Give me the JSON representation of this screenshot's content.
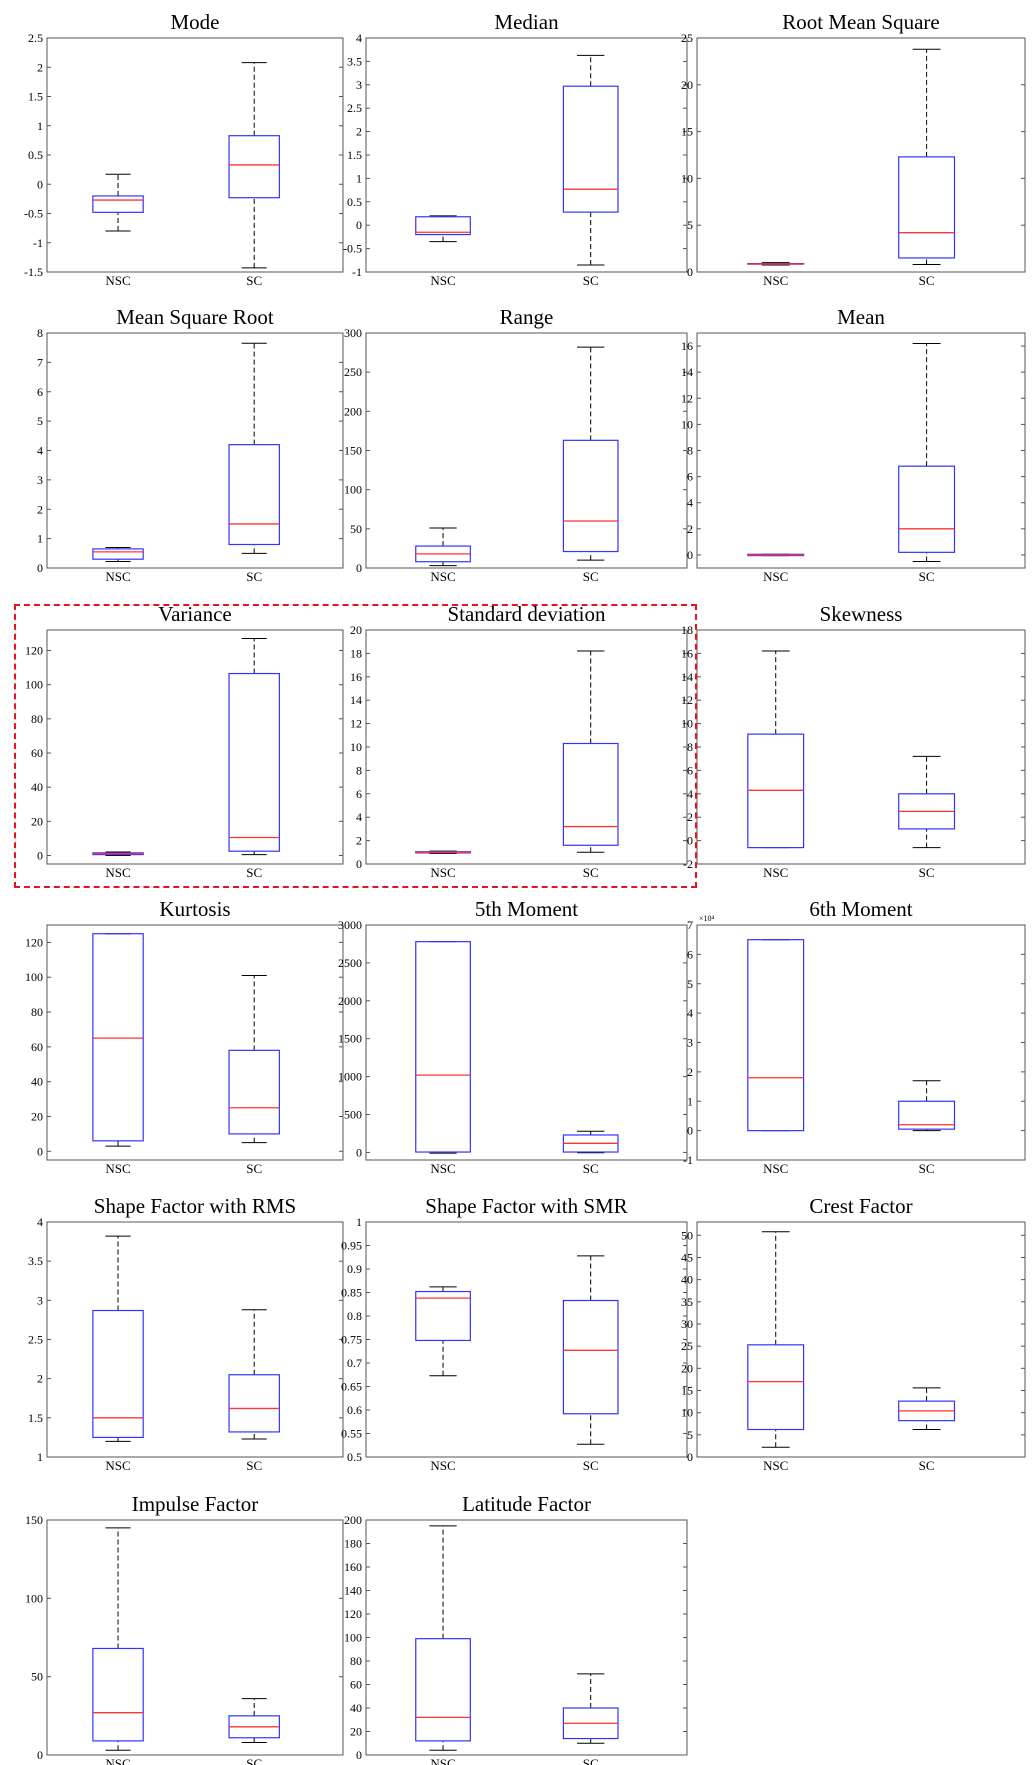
{
  "chart_data": [
    {
      "type": "box",
      "title": "Mode",
      "categories": [
        "NSC",
        "SC"
      ],
      "ylim": [
        -1.5,
        2.5
      ],
      "yticks": [
        -1.5,
        -1,
        -0.5,
        0,
        0.5,
        1,
        1.5,
        2,
        2.5
      ],
      "yticklabels": [
        "-1.5",
        "-1",
        "-0.5",
        "0",
        "0.5",
        "1",
        "1.5",
        "2",
        "2.5"
      ],
      "boxes": [
        {
          "min": -0.8,
          "q1": -0.48,
          "median": -0.27,
          "q3": -0.2,
          "max": 0.17
        },
        {
          "min": -1.43,
          "q1": -0.23,
          "median": 0.33,
          "q3": 0.83,
          "max": 2.08
        }
      ]
    },
    {
      "type": "box",
      "title": "Median",
      "categories": [
        "NSC",
        "SC"
      ],
      "ylim": [
        -1,
        4
      ],
      "yticks": [
        -1,
        -0.5,
        0,
        0.5,
        1,
        1.5,
        2,
        2.5,
        3,
        3.5,
        4
      ],
      "yticklabels": [
        "-1",
        "-0.5",
        "0",
        "0.5",
        "1",
        "1.5",
        "2",
        "2.5",
        "3",
        "3.5",
        "4"
      ],
      "boxes": [
        {
          "min": -0.35,
          "q1": -0.2,
          "median": -0.15,
          "q3": 0.18,
          "max": 0.2
        },
        {
          "min": -0.85,
          "q1": 0.28,
          "median": 0.77,
          "q3": 2.97,
          "max": 3.63
        }
      ]
    },
    {
      "type": "box",
      "title": "Root Mean Square",
      "categories": [
        "NSC",
        "SC"
      ],
      "ylim": [
        0,
        25
      ],
      "yticks": [
        0,
        5,
        10,
        15,
        20,
        25
      ],
      "yticklabels": [
        "0",
        "5",
        "10",
        "15",
        "20",
        "25"
      ],
      "boxes": [
        {
          "min": 0.75,
          "q1": 0.85,
          "median": 0.85,
          "q3": 0.9,
          "max": 1.0
        },
        {
          "min": 0.8,
          "q1": 1.5,
          "median": 4.2,
          "q3": 12.3,
          "max": 23.8
        }
      ]
    },
    {
      "type": "box",
      "title": "Mean Square Root",
      "categories": [
        "NSC",
        "SC"
      ],
      "ylim": [
        0,
        8
      ],
      "yticks": [
        0,
        1,
        2,
        3,
        4,
        5,
        6,
        7,
        8
      ],
      "yticklabels": [
        "0",
        "1",
        "2",
        "3",
        "4",
        "5",
        "6",
        "7",
        "8"
      ],
      "boxes": [
        {
          "min": 0.22,
          "q1": 0.3,
          "median": 0.55,
          "q3": 0.65,
          "max": 0.7
        },
        {
          "min": 0.5,
          "q1": 0.8,
          "median": 1.5,
          "q3": 4.2,
          "max": 7.65
        }
      ]
    },
    {
      "type": "box",
      "title": "Range",
      "categories": [
        "NSC",
        "SC"
      ],
      "ylim": [
        0,
        300
      ],
      "yticks": [
        0,
        50,
        100,
        150,
        200,
        250,
        300
      ],
      "yticklabels": [
        "0",
        "50",
        "100",
        "150",
        "200",
        "250",
        "300"
      ],
      "boxes": [
        {
          "min": 3,
          "q1": 8,
          "median": 18,
          "q3": 28,
          "max": 51
        },
        {
          "min": 10,
          "q1": 21,
          "median": 60,
          "q3": 163,
          "max": 282
        }
      ]
    },
    {
      "type": "box",
      "title": "Mean",
      "categories": [
        "NSC",
        "SC"
      ],
      "ylim": [
        -1,
        17
      ],
      "yticks": [
        0,
        2,
        4,
        6,
        8,
        10,
        12,
        14,
        16
      ],
      "yticklabels": [
        "0",
        "2",
        "4",
        "6",
        "8",
        "10",
        "12",
        "14",
        "16"
      ],
      "boxes": [
        {
          "min": -0.05,
          "q1": -0.05,
          "median": 0,
          "q3": 0.05,
          "max": 0.05
        },
        {
          "min": -0.5,
          "q1": 0.2,
          "median": 2,
          "q3": 6.8,
          "max": 16.2
        }
      ]
    },
    {
      "type": "box",
      "title": "Variance",
      "categories": [
        "NSC",
        "SC"
      ],
      "ylim": [
        -5,
        132
      ],
      "yticks": [
        0,
        20,
        40,
        60,
        80,
        100,
        120
      ],
      "yticklabels": [
        "0",
        "20",
        "40",
        "60",
        "80",
        "100",
        "120"
      ],
      "boxes": [
        {
          "min": 0,
          "q1": 0.5,
          "median": 1,
          "q3": 1.5,
          "max": 2
        },
        {
          "min": 0.5,
          "q1": 2.5,
          "median": 10.5,
          "q3": 106.5,
          "max": 127
        }
      ]
    },
    {
      "type": "box",
      "title": "Standard deviation",
      "categories": [
        "NSC",
        "SC"
      ],
      "ylim": [
        0,
        20
      ],
      "yticks": [
        0,
        2,
        4,
        6,
        8,
        10,
        12,
        14,
        16,
        18,
        20
      ],
      "yticklabels": [
        "0",
        "2",
        "4",
        "6",
        "8",
        "10",
        "12",
        "14",
        "16",
        "18",
        "20"
      ],
      "boxes": [
        {
          "min": 0.9,
          "q1": 0.95,
          "median": 1,
          "q3": 1.05,
          "max": 1.1
        },
        {
          "min": 1,
          "q1": 1.6,
          "median": 3.2,
          "q3": 10.3,
          "max": 18.2
        }
      ]
    },
    {
      "type": "box",
      "title": "Skewness",
      "categories": [
        "NSC",
        "SC"
      ],
      "ylim": [
        -2,
        18
      ],
      "yticks": [
        -2,
        0,
        2,
        4,
        6,
        8,
        10,
        12,
        14,
        16,
        18
      ],
      "yticklabels": [
        "-2",
        "0",
        "2",
        "4",
        "6",
        "8",
        "10",
        "12",
        "14",
        "16",
        "18"
      ],
      "boxes": [
        {
          "min": -0.6,
          "q1": -0.6,
          "median": 4.3,
          "q3": 9.1,
          "max": 16.2
        },
        {
          "min": -0.6,
          "q1": 1,
          "median": 2.5,
          "q3": 4,
          "max": 7.2
        }
      ]
    },
    {
      "type": "box",
      "title": "Kurtosis",
      "categories": [
        "NSC",
        "SC"
      ],
      "ylim": [
        -5,
        130
      ],
      "yticks": [
        0,
        20,
        40,
        60,
        80,
        100,
        120
      ],
      "yticklabels": [
        "0",
        "20",
        "40",
        "60",
        "80",
        "100",
        "120"
      ],
      "boxes": [
        {
          "min": 3,
          "q1": 6,
          "median": 65,
          "q3": 125,
          "max": 125
        },
        {
          "min": 5,
          "q1": 10,
          "median": 25,
          "q3": 58,
          "max": 101
        }
      ]
    },
    {
      "type": "box",
      "title": "5th Moment",
      "categories": [
        "NSC",
        "SC"
      ],
      "ylim": [
        -100,
        3000
      ],
      "yticks": [
        0,
        500,
        1000,
        1500,
        2000,
        2500,
        3000
      ],
      "yticklabels": [
        "0",
        "500",
        "1000",
        "1500",
        "2000",
        "2500",
        "3000"
      ],
      "boxes": [
        {
          "min": -10,
          "q1": 5,
          "median": 1020,
          "q3": 2780,
          "max": 2780
        },
        {
          "min": -5,
          "q1": 5,
          "median": 120,
          "q3": 230,
          "max": 280
        }
      ]
    },
    {
      "type": "box",
      "title": "6th Moment",
      "categories": [
        "NSC",
        "SC"
      ],
      "ylim": [
        -1,
        7
      ],
      "exponent_label": "×10⁴",
      "yticks": [
        -1,
        0,
        1,
        2,
        3,
        4,
        5,
        6,
        7
      ],
      "yticklabels": [
        "-1",
        "0",
        "1",
        "2",
        "3",
        "4",
        "5",
        "6",
        "7"
      ],
      "boxes": [
        {
          "min": 0,
          "q1": 0,
          "median": 1.8,
          "q3": 6.5,
          "max": 6.5
        },
        {
          "min": 0,
          "q1": 0.05,
          "median": 0.2,
          "q3": 1.0,
          "max": 1.7
        }
      ]
    },
    {
      "type": "box",
      "title": "Shape Factor with RMS",
      "categories": [
        "NSC",
        "SC"
      ],
      "ylim": [
        1,
        4
      ],
      "yticks": [
        1,
        1.5,
        2,
        2.5,
        3,
        3.5,
        4
      ],
      "yticklabels": [
        "1",
        "1.5",
        "2",
        "2.5",
        "3",
        "3.5",
        "4"
      ],
      "boxes": [
        {
          "min": 1.2,
          "q1": 1.25,
          "median": 1.5,
          "q3": 2.87,
          "max": 3.82
        },
        {
          "min": 1.23,
          "q1": 1.32,
          "median": 1.62,
          "q3": 2.05,
          "max": 2.88
        }
      ]
    },
    {
      "type": "box",
      "title": "Shape Factor with SMR",
      "categories": [
        "NSC",
        "SC"
      ],
      "ylim": [
        0.5,
        1
      ],
      "yticks": [
        0.5,
        0.55,
        0.6,
        0.65,
        0.7,
        0.75,
        0.8,
        0.85,
        0.9,
        0.95,
        1
      ],
      "yticklabels": [
        "0.5",
        "0.55",
        "0.6",
        "0.65",
        "0.7",
        "0.75",
        "0.8",
        "0.85",
        "0.9",
        "0.95",
        "1"
      ],
      "boxes": [
        {
          "min": 0.673,
          "q1": 0.748,
          "median": 0.838,
          "q3": 0.852,
          "max": 0.862
        },
        {
          "min": 0.527,
          "q1": 0.592,
          "median": 0.727,
          "q3": 0.833,
          "max": 0.928
        }
      ]
    },
    {
      "type": "box",
      "title": "Crest Factor",
      "categories": [
        "NSC",
        "SC"
      ],
      "ylim": [
        0,
        53
      ],
      "yticks": [
        0,
        5,
        10,
        15,
        20,
        25,
        30,
        35,
        40,
        45,
        50
      ],
      "yticklabels": [
        "0",
        "5",
        "10",
        "15",
        "20",
        "25",
        "30",
        "35",
        "40",
        "45",
        "50"
      ],
      "boxes": [
        {
          "min": 2.2,
          "q1": 6.2,
          "median": 17,
          "q3": 25.3,
          "max": 50.8
        },
        {
          "min": 6.2,
          "q1": 8.2,
          "median": 10.4,
          "q3": 12.6,
          "max": 15.6
        }
      ]
    },
    {
      "type": "box",
      "title": "Impulse Factor",
      "categories": [
        "NSC",
        "SC"
      ],
      "ylim": [
        0,
        150
      ],
      "yticks": [
        0,
        50,
        100,
        150
      ],
      "yticklabels": [
        "0",
        "50",
        "100",
        "150"
      ],
      "boxes": [
        {
          "min": 3,
          "q1": 9,
          "median": 27,
          "q3": 68,
          "max": 145
        },
        {
          "min": 8,
          "q1": 11,
          "median": 18,
          "q3": 25,
          "max": 36
        }
      ]
    },
    {
      "type": "box",
      "title": "Latitude Factor",
      "categories": [
        "NSC",
        "SC"
      ],
      "ylim": [
        0,
        200
      ],
      "yticks": [
        0,
        20,
        40,
        60,
        80,
        100,
        120,
        140,
        160,
        180,
        200
      ],
      "yticklabels": [
        "0",
        "20",
        "40",
        "60",
        "80",
        "100",
        "120",
        "140",
        "160",
        "180",
        "200"
      ],
      "boxes": [
        {
          "min": 4,
          "q1": 12,
          "median": 32,
          "q3": 99,
          "max": 195
        },
        {
          "min": 10,
          "q1": 14,
          "median": 27,
          "q3": 40,
          "max": 69
        }
      ]
    }
  ],
  "style": {
    "box_color": "#3333ff",
    "median_color": "#ff3333",
    "whisker_color": "#000000",
    "frame_color": "#555555",
    "highlight_color": "#e8141c"
  },
  "highlight": {
    "style": "dashed",
    "charts": [
      "Variance",
      "Standard deviation"
    ]
  }
}
